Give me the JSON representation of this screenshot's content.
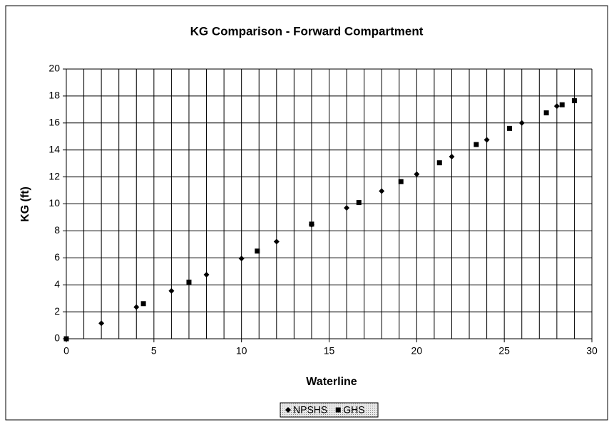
{
  "chart_data": {
    "type": "scatter",
    "title": "KG Comparison - Forward Compartment",
    "x_label": "Waterline",
    "y_label": "KG (ft)",
    "xlim": [
      0,
      30
    ],
    "xticks": [
      0,
      5,
      10,
      15,
      20,
      25,
      30
    ],
    "xgrid": [
      1,
      2,
      3,
      4,
      5,
      6,
      7,
      8,
      9,
      10,
      11,
      12,
      13,
      14,
      15,
      16,
      17,
      18,
      19,
      20,
      21,
      22,
      23,
      24,
      25,
      26,
      27,
      28,
      29,
      30
    ],
    "ylim": [
      0,
      20
    ],
    "yticks": [
      0,
      2,
      4,
      6,
      8,
      10,
      12,
      14,
      16,
      18,
      20
    ],
    "grid": true,
    "legend": "bottom",
    "series": [
      {
        "name": "NPSHS",
        "color": "#000000",
        "marker": "diamond",
        "x": [
          0,
          2,
          4,
          6,
          8,
          10,
          12,
          14,
          16,
          18,
          20,
          22,
          24,
          26,
          28
        ],
        "values": [
          0,
          1.15,
          2.35,
          3.55,
          4.75,
          5.95,
          7.2,
          8.45,
          9.7,
          10.95,
          12.2,
          13.5,
          14.75,
          16.0,
          17.25
        ]
      },
      {
        "name": "GHS",
        "color": "#000000",
        "marker": "square",
        "x": [
          0,
          4.4,
          7,
          10.9,
          14,
          16.7,
          19.1,
          21.3,
          23.4,
          25.3,
          27.4,
          28.3,
          29.0
        ],
        "values": [
          0,
          2.6,
          4.2,
          6.5,
          8.5,
          10.1,
          11.65,
          13.05,
          14.4,
          15.6,
          16.75,
          17.35,
          17.65
        ]
      }
    ]
  }
}
